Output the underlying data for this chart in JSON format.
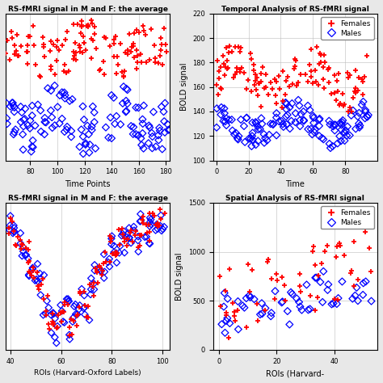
{
  "top_left": {
    "title": "RS-fMRI signal in M and F: the average",
    "xlabel": "Time Points",
    "xlim": [
      62,
      183
    ],
    "xticks": [
      80,
      100,
      120,
      140,
      160,
      180
    ],
    "female_y_center": 0.22,
    "female_y_spread": 0.25,
    "male_y_center": -0.38,
    "male_y_spread": 0.32
  },
  "top_right": {
    "title": "Temporal Analysis of RS-fMRI signal",
    "xlabel": "Time",
    "ylabel": "BOLD signal",
    "xlim": [
      -2,
      100
    ],
    "ylim": [
      100,
      220
    ],
    "xticks": [
      0,
      20,
      40,
      60,
      80
    ],
    "yticks": [
      100,
      120,
      140,
      160,
      180,
      200,
      220
    ],
    "female_y_center": 168,
    "female_y_spread": 22,
    "male_y_center": 132,
    "male_y_spread": 14
  },
  "bottom_left": {
    "title": "RS-fMRI signal in M and F: the average",
    "xlabel": "ROIs (Harvard-Oxford Labels)",
    "xlim": [
      38,
      103
    ],
    "xticks": [
      40,
      60,
      80,
      100
    ],
    "x_rois": [
      40,
      42,
      44,
      46,
      48,
      50,
      52,
      54,
      56,
      58,
      60,
      62,
      64,
      66,
      68,
      70,
      72,
      74,
      76,
      78,
      80,
      82,
      84,
      86,
      88,
      90,
      92,
      94,
      96,
      98,
      100
    ],
    "y_roi_pattern": [
      0.35,
      0.28,
      0.22,
      0.18,
      0.08,
      0.02,
      -0.05,
      -0.2,
      -0.32,
      -0.38,
      -0.28,
      -0.22,
      -0.35,
      -0.28,
      -0.15,
      -0.22,
      -0.1,
      0.02,
      0.08,
      0.15,
      0.22,
      0.18,
      0.28,
      0.22,
      0.3,
      0.25,
      0.35,
      0.3,
      0.38,
      0.35,
      0.4
    ]
  },
  "bottom_right": {
    "title": "Spatial Analysis of RS-fMRI signal",
    "xlabel": "ROIs (Harvard-",
    "ylabel": "BOLD signal",
    "xlim": [
      -2,
      55
    ],
    "ylim": [
      0,
      1500
    ],
    "xticks": [
      0,
      20,
      40
    ],
    "yticks": [
      0,
      500,
      1000,
      1500
    ]
  },
  "female_color": "#FF0000",
  "male_color": "#0000FF",
  "background": "#FFFFFF",
  "fig_background": "#E8E8E8",
  "seed": 7
}
